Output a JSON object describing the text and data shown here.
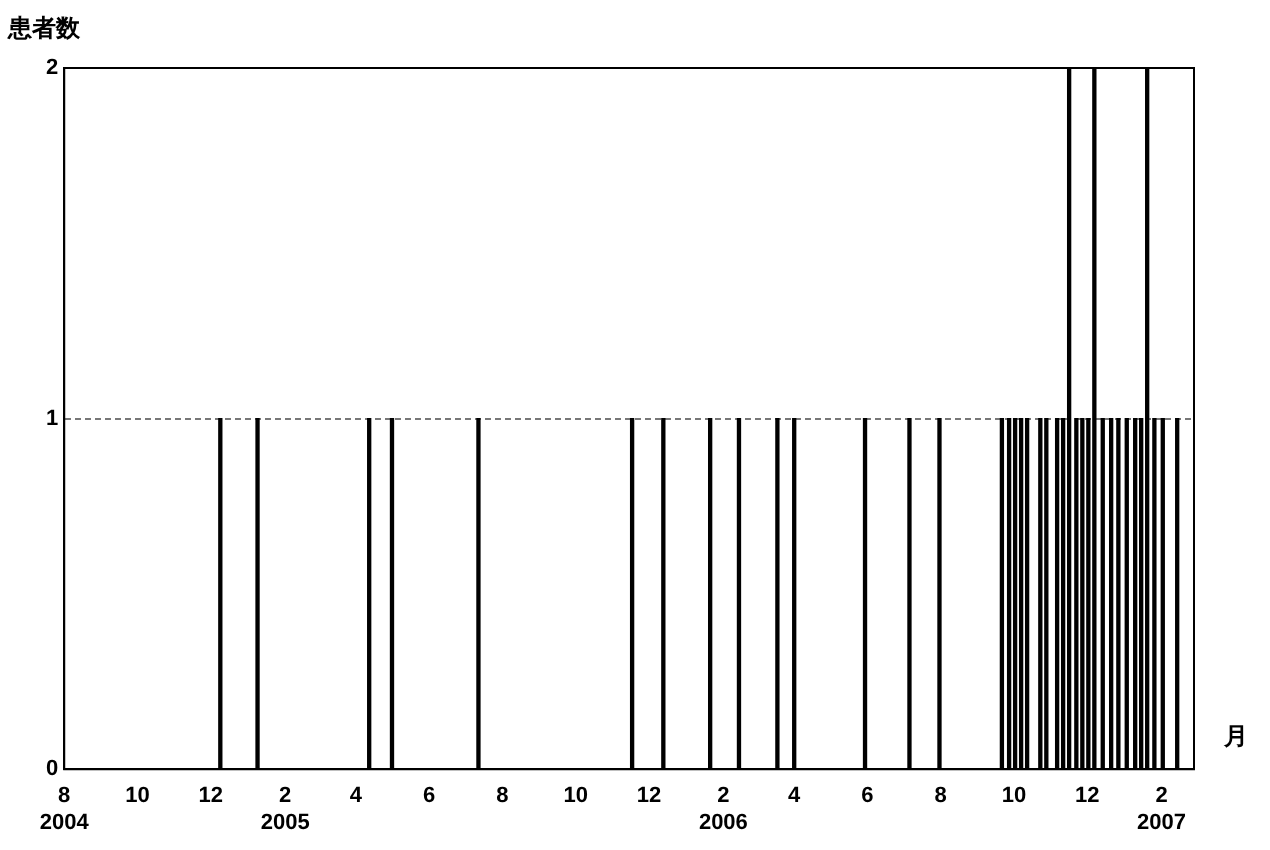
{
  "chart_data": {
    "type": "bar",
    "ylabel": "患者数",
    "xlabel": "月",
    "color": "#000000",
    "x": [
      "2004-12-09",
      "2005-01-09",
      "2005-04-12",
      "2005-05-01",
      "2005-07-12",
      "2005-11-17",
      "2005-12-13",
      "2006-01-21",
      "2006-02-14",
      "2006-03-18",
      "2006-04-01",
      "2006-05-30",
      "2006-07-06",
      "2006-07-31",
      "2006-09-21",
      "2006-09-27",
      "2006-10-02",
      "2006-10-07",
      "2006-10-12",
      "2006-10-23",
      "2006-10-28",
      "2006-11-06",
      "2006-11-11",
      "2006-11-16",
      "2006-11-22",
      "2006-11-27",
      "2006-12-02",
      "2006-12-07",
      "2006-12-14",
      "2006-12-21",
      "2006-12-27",
      "2007-01-03",
      "2007-01-10",
      "2007-01-15",
      "2007-01-20",
      "2007-01-26",
      "2007-02-02",
      "2007-02-14"
    ],
    "values": [
      1,
      1,
      1,
      1,
      1,
      1,
      1,
      1,
      1,
      1,
      1,
      1,
      1,
      1,
      1,
      1,
      1,
      1,
      1,
      1,
      1,
      1,
      1,
      2,
      1,
      1,
      1,
      2,
      1,
      1,
      1,
      1,
      1,
      1,
      2,
      1,
      1,
      1
    ],
    "xlim": [
      "2004-08-01",
      "2007-02-28"
    ],
    "xticks": [
      {
        "value": "2004-08-01",
        "label": "8\n2004"
      },
      {
        "value": "2004-10-01",
        "label": "10"
      },
      {
        "value": "2004-12-01",
        "label": "12"
      },
      {
        "value": "2005-02-01",
        "label": "2\n2005"
      },
      {
        "value": "2005-04-01",
        "label": "4"
      },
      {
        "value": "2005-06-01",
        "label": "6"
      },
      {
        "value": "2005-08-01",
        "label": "8"
      },
      {
        "value": "2005-10-01",
        "label": "10"
      },
      {
        "value": "2005-12-01",
        "label": "12"
      },
      {
        "value": "2006-02-01",
        "label": "2\n2006"
      },
      {
        "value": "2006-04-01",
        "label": "4"
      },
      {
        "value": "2006-06-01",
        "label": "6"
      },
      {
        "value": "2006-08-01",
        "label": "8"
      },
      {
        "value": "2006-10-01",
        "label": "10"
      },
      {
        "value": "2006-12-01",
        "label": "12"
      },
      {
        "value": "2007-02-01",
        "label": "2\n2007"
      }
    ],
    "ylim": [
      0,
      2
    ],
    "yticks": [
      0,
      1,
      2
    ],
    "grid": "y"
  }
}
